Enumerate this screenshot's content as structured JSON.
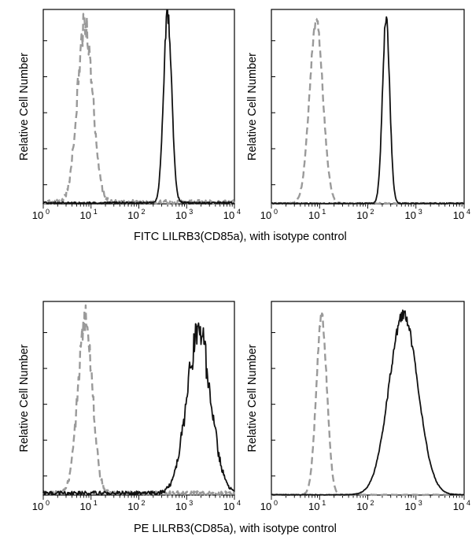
{
  "figure": {
    "rows": [
      {
        "caption": "FITC LILRB3(CD85a), with isotype control",
        "panels": [
          0,
          1
        ]
      },
      {
        "caption": "PE LILRB3(CD85a), with isotype control",
        "panels": [
          2,
          3
        ]
      }
    ]
  },
  "colors": {
    "isotype": "#9a9a9a",
    "antibody": "#111111",
    "axis": "#000000"
  },
  "chart_data": [
    {
      "type": "line",
      "ylabel": "Relative Cell Number",
      "xlabel": "",
      "x_scale": "log",
      "xlim": [
        1,
        10000
      ],
      "ylim": [
        0,
        100
      ],
      "x_ticks": [
        {
          "base": "10",
          "exp": "0"
        },
        {
          "base": "10",
          "exp": "1"
        },
        {
          "base": "10",
          "exp": "2"
        },
        {
          "base": "10",
          "exp": "3"
        },
        {
          "base": "10",
          "exp": "4"
        }
      ],
      "series": [
        {
          "style": "dashed",
          "color": "#9a9a9a",
          "peak_x": 7.5,
          "peak_y": 92,
          "log_width": 0.16,
          "noise": 0.09,
          "baseline": 2
        },
        {
          "style": "solid",
          "color": "#111111",
          "peak_x": 400,
          "peak_y": 96,
          "log_width": 0.085,
          "noise": 0.05,
          "baseline": 1
        }
      ]
    },
    {
      "type": "line",
      "ylabel": "Relative Cell Number",
      "xlabel": "",
      "x_scale": "log",
      "xlim": [
        1,
        10000
      ],
      "ylim": [
        0,
        100
      ],
      "x_ticks": [
        {
          "base": "10",
          "exp": "0"
        },
        {
          "base": "10",
          "exp": "1"
        },
        {
          "base": "10",
          "exp": "2"
        },
        {
          "base": "10",
          "exp": "3"
        },
        {
          "base": "10",
          "exp": "4"
        }
      ],
      "series": [
        {
          "style": "dashed",
          "color": "#9a9a9a",
          "peak_x": 8.5,
          "peak_y": 93,
          "log_width": 0.14,
          "noise": 0.04,
          "baseline": 0.5
        },
        {
          "style": "solid",
          "color": "#111111",
          "peak_x": 240,
          "peak_y": 95,
          "log_width": 0.075,
          "noise": 0.03,
          "baseline": 0.5
        }
      ]
    },
    {
      "type": "line",
      "ylabel": "Relative Cell Number",
      "xlabel": "",
      "x_scale": "log",
      "xlim": [
        1,
        10000
      ],
      "ylim": [
        0,
        100
      ],
      "x_ticks": [
        {
          "base": "10",
          "exp": "0"
        },
        {
          "base": "10",
          "exp": "1"
        },
        {
          "base": "10",
          "exp": "2"
        },
        {
          "base": "10",
          "exp": "3"
        },
        {
          "base": "10",
          "exp": "4"
        }
      ],
      "series": [
        {
          "style": "dashed",
          "color": "#9a9a9a",
          "peak_x": 7.5,
          "peak_y": 90,
          "log_width": 0.15,
          "noise": 0.1,
          "baseline": 2
        },
        {
          "style": "solid",
          "color": "#111111",
          "peak_x": 1800,
          "peak_y": 82,
          "log_width": 0.25,
          "noise": 0.12,
          "baseline": 2
        }
      ]
    },
    {
      "type": "line",
      "ylabel": "Relative Cell Number",
      "xlabel": "",
      "x_scale": "log",
      "xlim": [
        1,
        10000
      ],
      "ylim": [
        0,
        100
      ],
      "x_ticks": [
        {
          "base": "10",
          "exp": "0"
        },
        {
          "base": "10",
          "exp": "1"
        },
        {
          "base": "10",
          "exp": "2"
        },
        {
          "base": "10",
          "exp": "3"
        },
        {
          "base": "10",
          "exp": "4"
        }
      ],
      "series": [
        {
          "style": "dashed",
          "color": "#9a9a9a",
          "peak_x": 11,
          "peak_y": 92,
          "log_width": 0.11,
          "noise": 0.03,
          "baseline": 0.3
        },
        {
          "style": "solid",
          "color": "#111111",
          "peak_x": 550,
          "peak_y": 93,
          "log_width": 0.3,
          "noise": 0.03,
          "baseline": 0.3
        }
      ]
    }
  ]
}
